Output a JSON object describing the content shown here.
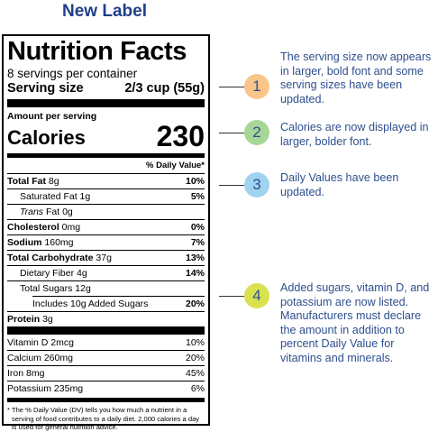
{
  "title": "New Label",
  "label": {
    "heading": "Nutrition Facts",
    "servings_per_container": "8 servings per container",
    "serving_size_label": "Serving size",
    "serving_size_value": "2/3 cup (55g)",
    "amount_per_serving": "Amount per serving",
    "calories_label": "Calories",
    "calories_value": "230",
    "dv_header": "% Daily Value*",
    "rows": [
      {
        "bold": "Total Fat",
        "rest": " 8g",
        "pct": "10%"
      },
      {
        "bold": "",
        "rest": "Saturated Fat 1g",
        "pct": "5%"
      },
      {
        "italic": "Trans",
        "rest": " Fat 0g",
        "pct": ""
      },
      {
        "bold": "Cholesterol",
        "rest": " 0mg",
        "pct": "0%"
      },
      {
        "bold": "Sodium",
        "rest": " 160mg",
        "pct": "7%"
      },
      {
        "bold": "Total Carbohydrate",
        "rest": " 37g",
        "pct": "13%"
      },
      {
        "bold": "",
        "rest": "Dietary Fiber 4g",
        "pct": "14%"
      },
      {
        "bold": "",
        "rest": "Total Sugars 12g",
        "pct": ""
      },
      {
        "bold": "",
        "rest": "Includes 10g Added Sugars",
        "pct": "20%"
      },
      {
        "bold": "Protein",
        "rest": " 3g",
        "pct": ""
      }
    ],
    "vitamins": [
      {
        "name": "Vitamin D 2mcg",
        "pct": "10%"
      },
      {
        "name": "Calcium 260mg",
        "pct": "20%"
      },
      {
        "name": "Iron 8mg",
        "pct": "45%"
      },
      {
        "name": "Potassium 235mg",
        "pct": "6%"
      }
    ],
    "footnote": "* The % Daily Value (DV) tells you how much a nutrient in a serving of food contributes to a daily diet. 2,000 calories a day is used for general nutrition advice."
  },
  "notes": [
    {
      "number": "1",
      "color": "#f9c58a",
      "text": "The serving size now appears in larger, bold font and some serving sizes have been updated."
    },
    {
      "number": "2",
      "color": "#a7d796",
      "text": "Calories are now displayed in larger, bolder font."
    },
    {
      "number": "3",
      "color": "#9fd3ef",
      "text": "Daily Values have been updated."
    },
    {
      "number": "4",
      "color": "#d8e24f",
      "text": "Added sugars, vitamin D, and potassium are now listed. Manufacturers must declare the amount in addition to percent Daily Value for vitamins and minerals."
    }
  ]
}
